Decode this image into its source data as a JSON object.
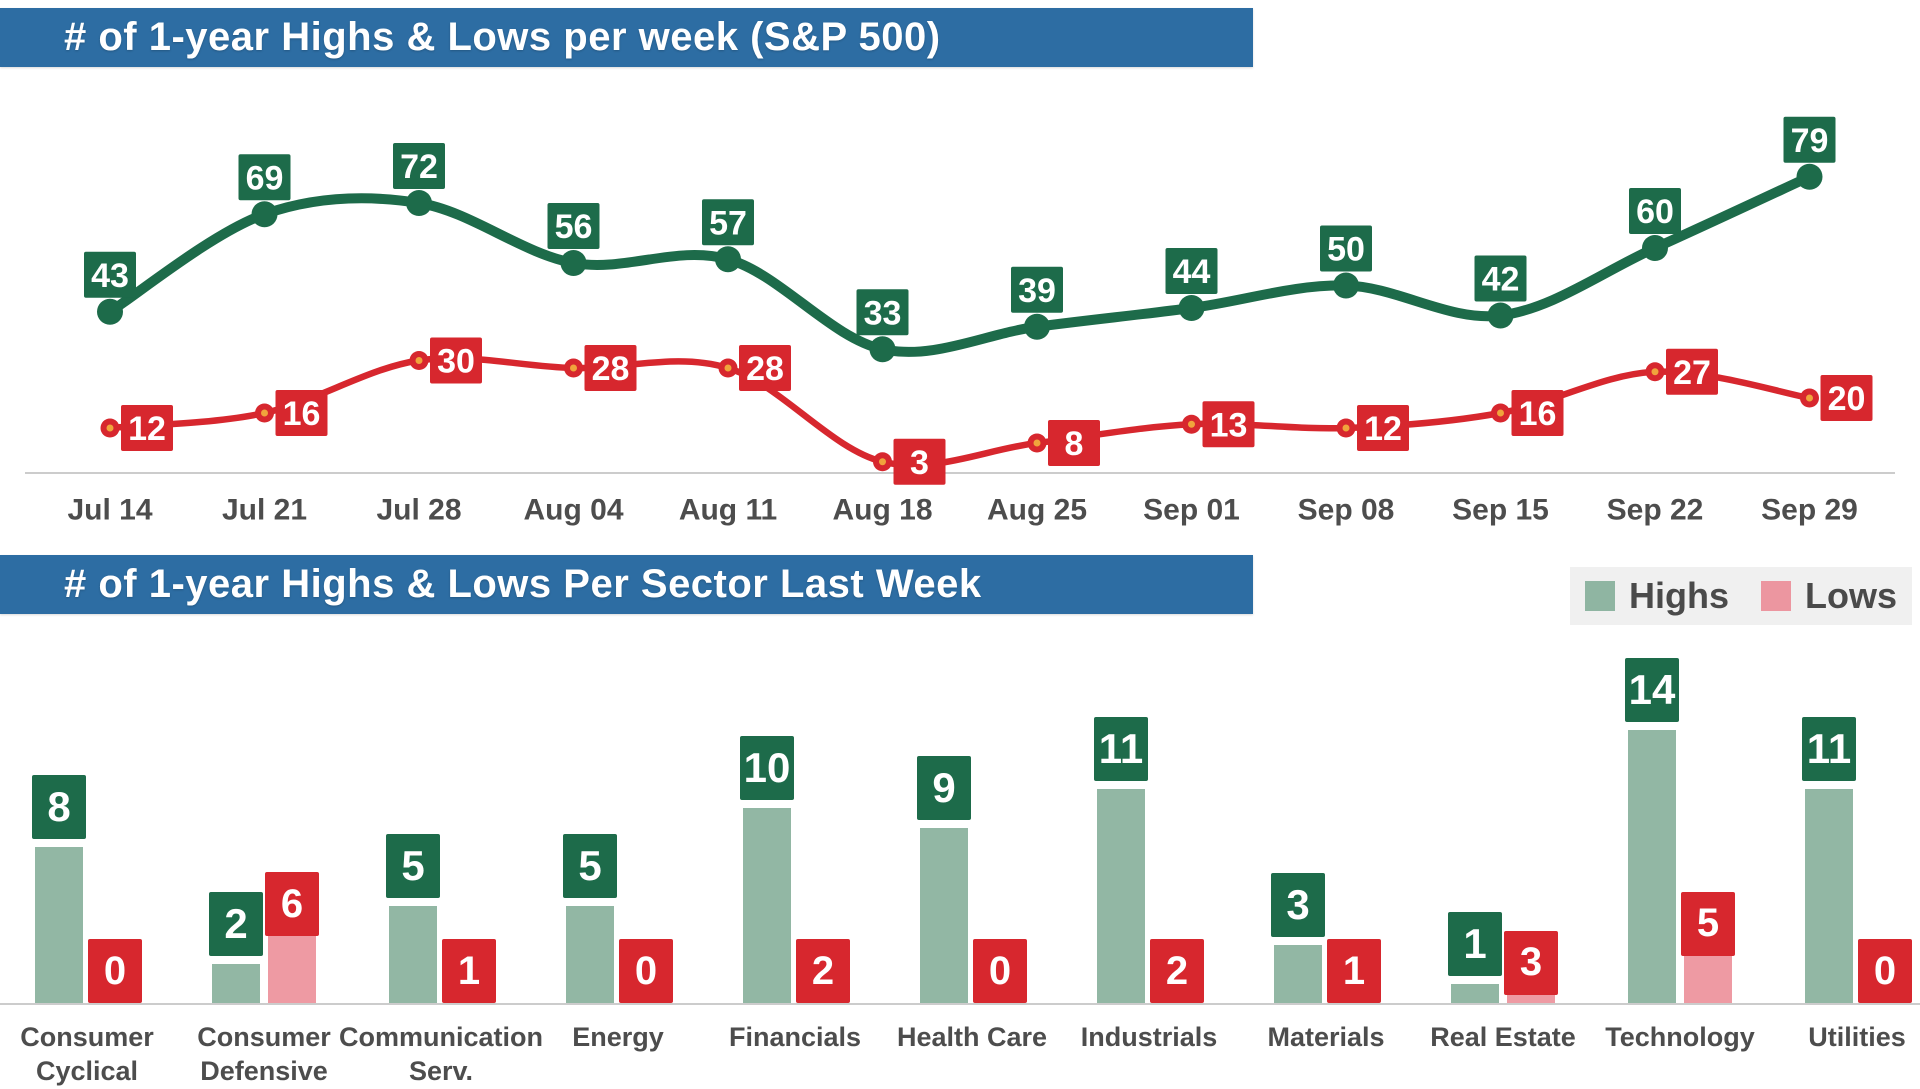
{
  "header1": {
    "title": "# of 1-year Highs & Lows per week (S&P 500)"
  },
  "header2": {
    "title": "# of 1-year Highs & Lows Per Sector Last Week"
  },
  "colors": {
    "header_blue": "#2d6da3",
    "highs_line_green": "#1d6b4a",
    "lows_line_red": "#d7272e",
    "highs_bar_green": "#92b7a4",
    "lows_bar_pink": "#ee9aa3",
    "badge_green": "#1d6b4a",
    "badge_red": "#d7272e",
    "dot_center_orange": "#f0a43c",
    "axis_gray": "#cccccc",
    "label_gray": "#4d4d4d",
    "legend_bg": "#f0f0f0"
  },
  "chart_data": [
    {
      "type": "line",
      "title": "# of 1-year Highs & Lows per week (S&P 500)",
      "x": [
        "Jul 14",
        "Jul 21",
        "Jul 28",
        "Aug 04",
        "Aug 11",
        "Aug 18",
        "Aug 25",
        "Sep 01",
        "Sep 08",
        "Sep 15",
        "Sep 22",
        "Sep 29"
      ],
      "series": [
        {
          "name": "Highs",
          "color": "#1d6b4a",
          "values": [
            43,
            69,
            72,
            56,
            57,
            33,
            39,
            44,
            50,
            42,
            60,
            79
          ]
        },
        {
          "name": "Lows",
          "color": "#d7272e",
          "values": [
            12,
            16,
            30,
            28,
            28,
            3,
            8,
            13,
            12,
            16,
            27,
            20
          ]
        }
      ],
      "ylim": [
        0,
        85
      ],
      "grid": false,
      "point_labels": true,
      "legend_position": "none"
    },
    {
      "type": "bar",
      "title": "# of 1-year Highs & Lows Per Sector Last Week",
      "categories": [
        "Consumer Cyclical",
        "Consumer Defensive",
        "Communication Serv.",
        "Energy",
        "Financials",
        "Health Care",
        "Industrials",
        "Materials",
        "Real Estate",
        "Technology",
        "Utilities"
      ],
      "series": [
        {
          "name": "Highs",
          "color": "#92b7a4",
          "values": [
            8,
            2,
            5,
            5,
            10,
            9,
            11,
            3,
            1,
            14,
            11
          ]
        },
        {
          "name": "Lows",
          "color": "#ee9aa3",
          "values": [
            0,
            6,
            1,
            0,
            2,
            0,
            2,
            1,
            3,
            5,
            0
          ]
        }
      ],
      "ylim": [
        0,
        14
      ],
      "grid": false,
      "legend_position": "top-right"
    }
  ]
}
